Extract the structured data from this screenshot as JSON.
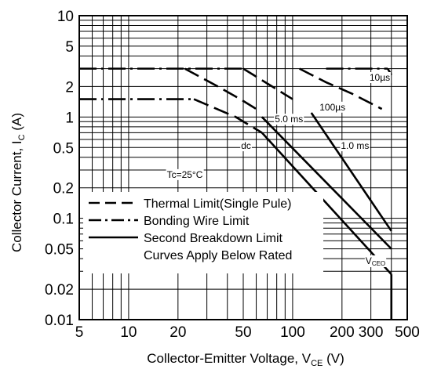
{
  "chart_data": {
    "type": "line",
    "scale": "log-log",
    "grid": true,
    "xlim": [
      5,
      500
    ],
    "ylim": [
      0.01,
      10
    ],
    "x_ticks": [
      {
        "value": 5,
        "label": "5"
      },
      {
        "value": 10,
        "label": "10"
      },
      {
        "value": 20,
        "label": "20"
      },
      {
        "value": 50,
        "label": "50"
      },
      {
        "value": 100,
        "label": "100"
      },
      {
        "value": 200,
        "label": "200"
      },
      {
        "value": 300,
        "label": "300"
      },
      {
        "value": 500,
        "label": "500"
      }
    ],
    "y_ticks": [
      {
        "value": 0.01,
        "label": "0.01"
      },
      {
        "value": 0.02,
        "label": "0.02"
      },
      {
        "value": 0.05,
        "label": "0.05"
      },
      {
        "value": 0.1,
        "label": "0.1"
      },
      {
        "value": 0.2,
        "label": "0.2"
      },
      {
        "value": 0.5,
        "label": "0.5"
      },
      {
        "value": 1,
        "label": "1"
      },
      {
        "value": 2,
        "label": "2"
      },
      {
        "value": 5,
        "label": "5"
      },
      {
        "value": 10,
        "label": "10"
      }
    ],
    "xlabel": {
      "main": "Collector-Emitter Voltage, V",
      "sub": "CE",
      "unit": " (V)"
    },
    "ylabel": {
      "main": "Collector Current, I",
      "sub": "C",
      "unit": " (A)"
    },
    "series": [
      {
        "style": "dashdot",
        "points": [
          [
            5,
            3
          ],
          [
            50,
            3
          ]
        ]
      },
      {
        "style": "dashdot",
        "points": [
          [
            5,
            1.5
          ],
          [
            25,
            1.5
          ]
        ]
      },
      {
        "style": "dashdot",
        "points": [
          [
            160,
            3
          ],
          [
            380,
            3
          ]
        ]
      },
      {
        "style": "dashed",
        "points": [
          [
            50,
            3
          ],
          [
            75,
            2
          ],
          [
            100,
            1.5
          ]
        ]
      },
      {
        "style": "dashed",
        "points": [
          [
            25,
            1.5
          ],
          [
            45,
            1.0
          ],
          [
            65,
            0.7
          ]
        ]
      },
      {
        "style": "dashed",
        "points": [
          [
            22,
            3
          ],
          [
            35,
            2
          ],
          [
            48,
            1.5
          ],
          [
            60,
            1.2
          ]
        ]
      },
      {
        "style": "dashed",
        "points": [
          [
            110,
            3
          ],
          [
            160,
            2.2
          ],
          [
            230,
            1.7
          ],
          [
            350,
            1.2
          ]
        ]
      },
      {
        "style": "dashed",
        "points": [
          [
            380,
            3
          ],
          [
            400,
            2.6
          ]
        ]
      },
      {
        "style": "solid",
        "points": [
          [
            65,
            0.7
          ],
          [
            400,
            0.028
          ]
        ]
      },
      {
        "style": "solid",
        "points": [
          [
            65,
            1.0
          ],
          [
            400,
            0.05
          ]
        ]
      },
      {
        "style": "solid",
        "points": [
          [
            130,
            1.1
          ],
          [
            400,
            0.075
          ]
        ]
      },
      {
        "style": "solid",
        "points": [
          [
            400,
            0.028
          ],
          [
            400,
            0.01
          ]
        ]
      }
    ],
    "annotations": [
      {
        "text": "10µs",
        "x": 340,
        "y": 2.45
      },
      {
        "text": "100µs",
        "x": 175,
        "y": 1.25
      },
      {
        "text": "5.0 ms",
        "x": 95,
        "y": 0.95
      },
      {
        "text": "1.0 ms",
        "x": 240,
        "y": 0.52
      },
      {
        "text": "dc",
        "x": 52,
        "y": 0.52
      },
      {
        "text": "Tc=25°C",
        "x": 22,
        "y": 0.27
      },
      {
        "text_main": "V",
        "text_sub": "CEO",
        "x": 320,
        "y": 0.038
      }
    ],
    "legend": {
      "placement": "bottom-left",
      "entries": [
        {
          "style": "dashed",
          "label": "Thermal Limit(Single Pule)"
        },
        {
          "style": "dashdot",
          "label": "Bonding Wire Limit"
        },
        {
          "style": "solid",
          "label": "Second Breakdown Limit"
        },
        {
          "style": "none",
          "label": "Curves Apply Below Rated"
        }
      ]
    }
  }
}
